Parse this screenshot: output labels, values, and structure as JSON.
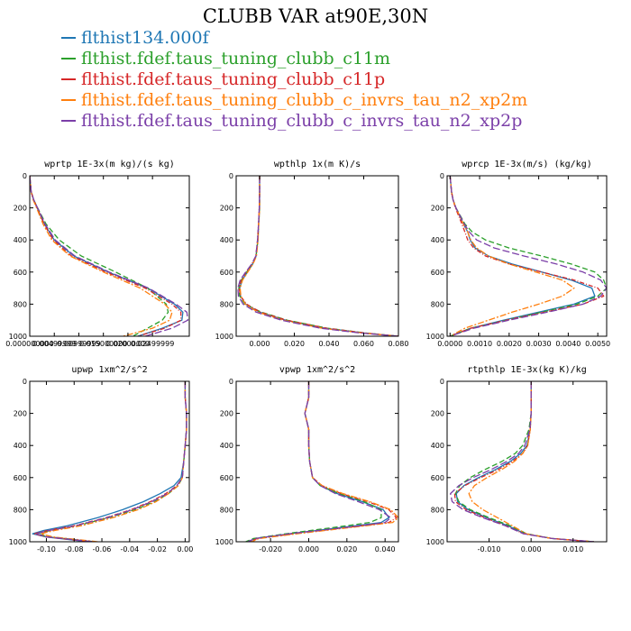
{
  "title": "CLUBB VAR at90E,30N",
  "series": [
    {
      "name": "flthist134.000f",
      "color": "#1f77b4"
    },
    {
      "name": "flthist.fdef.taus_tuning_clubb_c11m",
      "color": "#2ca02c"
    },
    {
      "name": "flthist.fdef.taus_tuning_clubb_c11p",
      "color": "#d62728"
    },
    {
      "name": "flthist.fdef.taus_tuning_clubb_c_invrs_tau_n2_xp2m",
      "color": "#ff7f0e"
    },
    {
      "name": "flthist.fdef.taus_tuning_clubb_c_invrs_tau_n2_xp2p",
      "color": "#7b3fa8"
    }
  ],
  "chart_data": [
    {
      "type": "line",
      "title": "wprtp  1E-3x(m kg)/(s kg)",
      "xlim": [
        0.0,
        0.0325
      ],
      "ylim": [
        1000,
        0
      ],
      "xticks": [
        0.0,
        0.005,
        0.01,
        0.015,
        0.02,
        0.025
      ],
      "xtick_labels": [
        "0.000000000",
        "0.00499999",
        "0.00999999",
        "0.015000000",
        "0.02000000",
        "0.02499999"
      ],
      "yticks": [
        0,
        200,
        400,
        600,
        800,
        1000
      ],
      "y": [
        0,
        100,
        150,
        200,
        300,
        400,
        500,
        600,
        700,
        800,
        850,
        900,
        950,
        1000
      ],
      "series": [
        {
          "x": [
            0.0,
            0.0003,
            0.0008,
            0.0015,
            0.003,
            0.005,
            0.009,
            0.016,
            0.024,
            0.0295,
            0.0312,
            0.031,
            0.027,
            0.022
          ]
        },
        {
          "x": [
            0.0,
            0.0003,
            0.0008,
            0.0016,
            0.0033,
            0.006,
            0.0105,
            0.0175,
            0.024,
            0.0278,
            0.0282,
            0.027,
            0.024,
            0.021
          ]
        },
        {
          "x": [
            0.0,
            0.0003,
            0.0008,
            0.0015,
            0.0029,
            0.0048,
            0.0085,
            0.0155,
            0.0235,
            0.029,
            0.0308,
            0.0308,
            0.0275,
            0.022
          ]
        },
        {
          "x": [
            0.0,
            0.0003,
            0.0007,
            0.0014,
            0.0027,
            0.0045,
            0.0082,
            0.015,
            0.0225,
            0.0275,
            0.029,
            0.0285,
            0.025,
            0.019
          ]
        },
        {
          "x": [
            0.0,
            0.0003,
            0.0008,
            0.0016,
            0.0031,
            0.0052,
            0.0092,
            0.0162,
            0.0242,
            0.0298,
            0.032,
            0.0322,
            0.029,
            0.0235
          ]
        }
      ]
    },
    {
      "type": "line",
      "title": "wpthlp  1x(m K)/s",
      "xlim": [
        -0.0135,
        0.08
      ],
      "ylim": [
        1000,
        0
      ],
      "xticks": [
        0.0,
        0.02,
        0.04,
        0.06,
        0.08
      ],
      "xtick_labels": [
        "0.000",
        "0.020",
        "0.040",
        "0.060",
        "0.080"
      ],
      "yticks": [
        0,
        200,
        400,
        600,
        800,
        1000
      ],
      "y": [
        0,
        100,
        200,
        300,
        400,
        500,
        550,
        600,
        650,
        700,
        750,
        800,
        850,
        900,
        950,
        980,
        1000
      ],
      "series": [
        {
          "x": [
            0.0,
            0.0,
            0.0,
            -0.0005,
            -0.001,
            -0.002,
            -0.004,
            -0.007,
            -0.01,
            -0.0115,
            -0.011,
            -0.008,
            0.0,
            0.015,
            0.038,
            0.06,
            0.08
          ]
        },
        {
          "x": [
            0.0,
            0.0,
            0.0,
            -0.0005,
            -0.001,
            -0.002,
            -0.004,
            -0.0075,
            -0.0105,
            -0.012,
            -0.0115,
            -0.0085,
            0.001,
            0.016,
            0.039,
            0.061,
            0.08
          ]
        },
        {
          "x": [
            0.0,
            0.0,
            -0.0002,
            -0.0006,
            -0.0012,
            -0.0022,
            -0.0045,
            -0.0078,
            -0.0108,
            -0.0118,
            -0.011,
            -0.0075,
            0.0005,
            0.0155,
            0.0385,
            0.0605,
            0.08
          ]
        },
        {
          "x": [
            0.0,
            0.0,
            0.0,
            -0.0005,
            -0.0009,
            -0.0018,
            -0.0038,
            -0.0068,
            -0.0098,
            -0.0112,
            -0.0108,
            -0.0082,
            -0.001,
            0.0135,
            0.036,
            0.059,
            0.08
          ]
        },
        {
          "x": [
            0.0,
            0.0,
            -0.0002,
            -0.0006,
            -0.0012,
            -0.0022,
            -0.0045,
            -0.008,
            -0.0112,
            -0.0125,
            -0.0122,
            -0.0095,
            -0.002,
            0.0125,
            0.035,
            0.058,
            0.08
          ]
        }
      ]
    },
    {
      "type": "line",
      "title": "wprcp  1E-3x(m/s) (kg/kg)",
      "xlim": [
        -0.0001,
        0.0053
      ],
      "ylim": [
        1000,
        0
      ],
      "xticks": [
        0.0,
        0.001,
        0.002,
        0.003,
        0.004,
        0.005
      ],
      "xtick_labels": [
        "0.0000",
        "0.0010",
        "0.0020",
        "0.0030",
        "0.0040",
        "0.0050"
      ],
      "yticks": [
        0,
        200,
        400,
        600,
        800,
        1000
      ],
      "y": [
        0,
        100,
        150,
        200,
        300,
        350,
        400,
        450,
        500,
        550,
        600,
        650,
        700,
        750,
        800,
        850,
        900,
        950,
        1000
      ],
      "series": [
        {
          "x": [
            0.0,
            5e-05,
            0.0001,
            0.0002,
            0.00045,
            0.0006,
            0.00068,
            0.00085,
            0.0013,
            0.0021,
            0.0031,
            0.0041,
            0.0048,
            0.0049,
            0.0042,
            0.003,
            0.0018,
            0.0007,
            0.0
          ]
        },
        {
          "x": [
            0.0,
            5e-05,
            0.0001,
            0.0002,
            0.0005,
            0.00075,
            0.0012,
            0.002,
            0.0031,
            0.0041,
            0.0049,
            0.0052,
            0.0053,
            0.005,
            0.0043,
            0.0031,
            0.0019,
            0.0007,
            0.0
          ]
        },
        {
          "x": [
            0.0,
            5e-05,
            0.0001,
            0.00018,
            0.0004,
            0.0005,
            0.0006,
            0.0008,
            0.0012,
            0.002,
            0.0031,
            0.0042,
            0.005,
            0.0052,
            0.0045,
            0.0032,
            0.0019,
            0.0007,
            0.0
          ]
        },
        {
          "x": [
            0.0,
            5e-05,
            0.0001,
            0.0002,
            0.00045,
            0.0006,
            0.0007,
            0.0009,
            0.0013,
            0.002,
            0.0029,
            0.0038,
            0.0042,
            0.0038,
            0.003,
            0.0021,
            0.0013,
            0.0005,
            0.0
          ]
        },
        {
          "x": [
            0.0,
            5e-05,
            0.0001,
            0.0002,
            0.00048,
            0.00065,
            0.0009,
            0.0015,
            0.0025,
            0.0036,
            0.0045,
            0.0051,
            0.0053,
            0.0051,
            0.0045,
            0.0033,
            0.002,
            0.0008,
            0.0
          ]
        }
      ]
    },
    {
      "type": "line",
      "title": "upwp  1xm^2/s^2",
      "xlim": [
        -0.112,
        0.003
      ],
      "ylim": [
        1000,
        0
      ],
      "xticks": [
        -0.1,
        -0.08,
        -0.06,
        -0.04,
        -0.02,
        0.0
      ],
      "xtick_labels": [
        "-0.10",
        "-0.08",
        "-0.06",
        "-0.04",
        "-0.02",
        "0.00"
      ],
      "yticks": [
        0,
        200,
        400,
        600,
        800,
        1000
      ],
      "y": [
        0,
        100,
        200,
        300,
        400,
        500,
        600,
        650,
        700,
        750,
        800,
        850,
        900,
        930,
        950,
        970,
        1000
      ],
      "series": [
        {
          "x": [
            0.0,
            0.0,
            0.001,
            0.001,
            0.0,
            -0.001,
            -0.003,
            -0.008,
            -0.018,
            -0.03,
            -0.045,
            -0.063,
            -0.085,
            -0.102,
            -0.11,
            -0.1,
            -0.07
          ]
        },
        {
          "x": [
            0.0,
            0.0,
            0.001,
            0.001,
            0.0,
            -0.001,
            -0.002,
            -0.005,
            -0.012,
            -0.022,
            -0.036,
            -0.055,
            -0.078,
            -0.097,
            -0.107,
            -0.097,
            -0.065
          ]
        },
        {
          "x": [
            0.0,
            0.0,
            0.001,
            0.001,
            0.0,
            -0.001,
            -0.002,
            -0.006,
            -0.014,
            -0.025,
            -0.039,
            -0.057,
            -0.08,
            -0.099,
            -0.109,
            -0.1,
            -0.068
          ]
        },
        {
          "x": [
            0.0,
            0.0,
            0.001,
            0.001,
            0.0,
            -0.001,
            -0.002,
            -0.005,
            -0.012,
            -0.021,
            -0.034,
            -0.052,
            -0.075,
            -0.094,
            -0.104,
            -0.095,
            -0.063
          ]
        },
        {
          "x": [
            0.0,
            0.0,
            0.001,
            0.001,
            0.0,
            -0.001,
            -0.002,
            -0.006,
            -0.013,
            -0.024,
            -0.038,
            -0.056,
            -0.079,
            -0.098,
            -0.108,
            -0.099,
            -0.066
          ]
        }
      ]
    },
    {
      "type": "line",
      "title": "vpwp  1xm^2/s^2",
      "xlim": [
        -0.038,
        0.047
      ],
      "ylim": [
        1000,
        0
      ],
      "xticks": [
        -0.02,
        0.0,
        0.02,
        0.04
      ],
      "xtick_labels": [
        "-0.020",
        "0.000",
        "0.020",
        "0.040"
      ],
      "yticks": [
        0,
        200,
        400,
        600,
        800,
        1000
      ],
      "y": [
        0,
        100,
        150,
        200,
        250,
        300,
        400,
        500,
        600,
        650,
        700,
        750,
        800,
        850,
        880,
        900,
        950,
        980,
        1000
      ],
      "series": [
        {
          "x": [
            0.0,
            0.0,
            -0.001,
            -0.002,
            -0.001,
            0.0,
            0.0,
            0.0005,
            0.002,
            0.006,
            0.015,
            0.028,
            0.039,
            0.042,
            0.038,
            0.025,
            -0.01,
            -0.028,
            -0.032
          ]
        },
        {
          "x": [
            0.0,
            0.0,
            -0.001,
            -0.002,
            -0.001,
            0.0,
            0.0,
            0.0005,
            0.002,
            0.006,
            0.016,
            0.029,
            0.038,
            0.038,
            0.032,
            0.02,
            -0.012,
            -0.029,
            -0.033
          ]
        },
        {
          "x": [
            0.0,
            0.0,
            -0.001,
            -0.002,
            -0.001,
            0.0,
            0.0,
            0.0005,
            0.002,
            0.007,
            0.017,
            0.031,
            0.042,
            0.046,
            0.042,
            0.028,
            -0.008,
            -0.027,
            -0.031
          ]
        },
        {
          "x": [
            0.0,
            0.0,
            -0.001,
            -0.002,
            -0.001,
            0.0,
            0.0,
            0.0005,
            0.002,
            0.007,
            0.018,
            0.032,
            0.043,
            0.047,
            0.044,
            0.03,
            -0.006,
            -0.026,
            -0.03
          ]
        },
        {
          "x": [
            0.0,
            0.0,
            -0.001,
            -0.002,
            -0.001,
            0.0,
            0.0,
            0.0005,
            0.002,
            0.006,
            0.014,
            0.026,
            0.037,
            0.043,
            0.04,
            0.027,
            -0.01,
            -0.028,
            -0.032
          ]
        }
      ]
    },
    {
      "type": "line",
      "title": "rtpthlp  1E-3x(kg K)/kg",
      "xlim": [
        -0.02,
        0.018
      ],
      "ylim": [
        1000,
        0
      ],
      "xticks": [
        -0.01,
        0.0,
        0.01
      ],
      "xtick_labels": [
        "-0.010",
        "0.000",
        "0.010"
      ],
      "yticks": [
        0,
        200,
        400,
        600,
        800,
        1000
      ],
      "y": [
        0,
        100,
        200,
        300,
        400,
        450,
        500,
        550,
        600,
        650,
        700,
        750,
        800,
        850,
        900,
        950,
        980,
        1000
      ],
      "series": [
        {
          "x": [
            0.0,
            0.0,
            0.0,
            -0.0002,
            -0.001,
            -0.0025,
            -0.005,
            -0.0085,
            -0.0125,
            -0.016,
            -0.0178,
            -0.0175,
            -0.015,
            -0.0105,
            -0.0055,
            -0.0015,
            0.005,
            0.015
          ]
        },
        {
          "x": [
            0.0,
            0.0,
            0.0,
            -0.0005,
            -0.002,
            -0.0038,
            -0.007,
            -0.011,
            -0.0145,
            -0.017,
            -0.018,
            -0.0172,
            -0.0145,
            -0.01,
            -0.005,
            -0.001,
            0.005,
            0.015
          ]
        },
        {
          "x": [
            0.0,
            0.0,
            0.0,
            -0.0002,
            -0.0008,
            -0.002,
            -0.0045,
            -0.0078,
            -0.012,
            -0.0158,
            -0.0182,
            -0.018,
            -0.0155,
            -0.011,
            -0.006,
            -0.0018,
            0.005,
            0.015
          ]
        },
        {
          "x": [
            0.0,
            0.0,
            0.0,
            -0.0002,
            -0.0008,
            -0.002,
            -0.004,
            -0.007,
            -0.0105,
            -0.0135,
            -0.0148,
            -0.014,
            -0.0115,
            -0.008,
            -0.0045,
            -0.0012,
            0.005,
            0.015
          ]
        },
        {
          "x": [
            0.0,
            0.0,
            0.0,
            -0.0003,
            -0.0015,
            -0.003,
            -0.0058,
            -0.0095,
            -0.0138,
            -0.0172,
            -0.0192,
            -0.0188,
            -0.0162,
            -0.0115,
            -0.0062,
            -0.0018,
            0.005,
            0.015
          ]
        }
      ]
    }
  ]
}
